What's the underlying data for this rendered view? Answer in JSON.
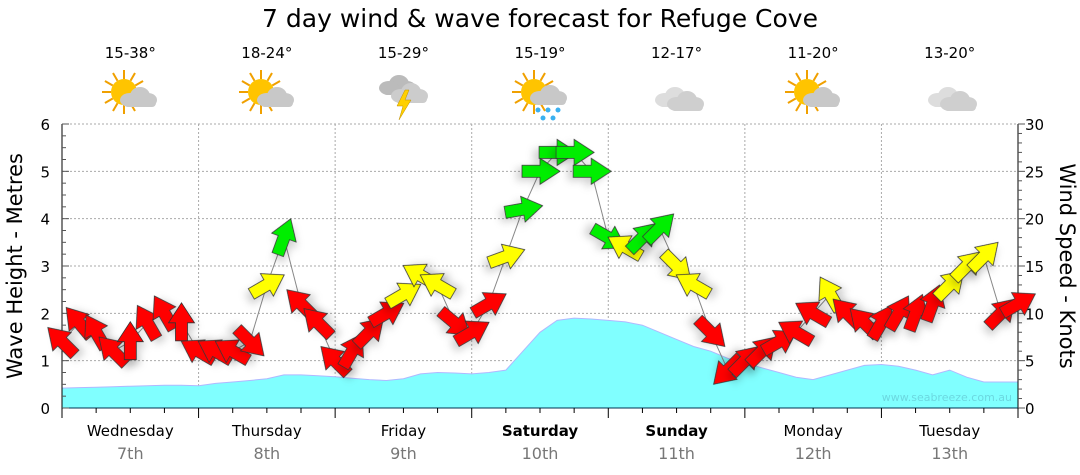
{
  "chart_data": {
    "type": "area+wind-arrows",
    "title": "7 day wind & wave forecast for Refuge Cove",
    "ylabel_left": "Wave Height - Metres",
    "ylabel_right": "Wind Speed - Knots",
    "ylim_left": [
      0,
      6
    ],
    "ylim_right": [
      0,
      30
    ],
    "yticks_left": [
      "0",
      "1",
      "2",
      "3",
      "4",
      "5",
      "6"
    ],
    "yticks_right": [
      "0",
      "5",
      "10",
      "15",
      "20",
      "25",
      "30"
    ],
    "grid": true,
    "watermark": "www.seabreeze.com.au",
    "interval_hours": 3,
    "days": [
      {
        "name": "Wednesday",
        "date": "7th",
        "bold": false,
        "temp": "15-38°",
        "icon": "sun-cloud-icon"
      },
      {
        "name": "Thursday",
        "date": "8th",
        "bold": false,
        "temp": "18-24°",
        "icon": "sun-cloud-icon"
      },
      {
        "name": "Friday",
        "date": "9th",
        "bold": false,
        "temp": "15-29°",
        "icon": "storm-cloud-icon"
      },
      {
        "name": "Saturday",
        "date": "10th",
        "bold": true,
        "temp": "15-19°",
        "icon": "sun-rain-icon"
      },
      {
        "name": "Sunday",
        "date": "11th",
        "bold": true,
        "temp": "12-17°",
        "icon": "cloud-icon"
      },
      {
        "name": "Monday",
        "date": "12th",
        "bold": false,
        "temp": "11-20°",
        "icon": "sun-cloud-icon"
      },
      {
        "name": "Tuesday",
        "date": "13th",
        "bold": false,
        "temp": "13-20°",
        "icon": "cloud-icon"
      }
    ],
    "wave_height_m": [
      0.42,
      0.43,
      0.44,
      0.45,
      0.46,
      0.47,
      0.48,
      0.48,
      0.47,
      0.52,
      0.55,
      0.58,
      0.62,
      0.7,
      0.7,
      0.68,
      0.66,
      0.63,
      0.6,
      0.58,
      0.62,
      0.72,
      0.75,
      0.74,
      0.72,
      0.75,
      0.8,
      1.2,
      1.6,
      1.85,
      1.9,
      1.88,
      1.85,
      1.82,
      1.75,
      1.6,
      1.45,
      1.3,
      1.2,
      1.05,
      0.95,
      0.85,
      0.75,
      0.65,
      0.6,
      0.7,
      0.8,
      0.9,
      0.92,
      0.88,
      0.8,
      0.7,
      0.8,
      0.65,
      0.55,
      0.55,
      0.55
    ],
    "wind_knots": [
      7,
      9,
      8,
      6,
      7,
      9,
      10,
      9,
      6,
      6,
      6,
      7,
      13,
      18,
      11,
      9,
      5,
      6,
      8,
      10,
      12,
      14,
      13,
      9,
      8,
      11,
      16,
      21,
      25,
      27,
      27,
      25,
      18,
      17,
      18,
      19,
      15,
      13,
      8,
      4,
      5,
      6,
      7,
      8,
      10,
      12,
      10,
      9,
      9,
      10,
      10,
      11,
      13,
      15,
      16,
      10,
      11
    ],
    "wind_arrow_dir_deg": [
      315,
      320,
      330,
      315,
      0,
      330,
      330,
      0,
      300,
      300,
      300,
      135,
      60,
      20,
      315,
      315,
      315,
      30,
      45,
      60,
      60,
      300,
      300,
      130,
      60,
      60,
      70,
      80,
      90,
      90,
      90,
      90,
      120,
      300,
      45,
      45,
      135,
      300,
      135,
      225,
      45,
      45,
      60,
      300,
      300,
      330,
      315,
      315,
      30,
      30,
      20,
      20,
      45,
      45,
      45,
      45,
      60
    ],
    "wind_color_thresholds_knots": {
      "yellow": 12,
      "green": 18
    },
    "colors": {
      "wave": "#80ffff",
      "wave_edge": "#b0b8ff",
      "red": "#ff0000",
      "yellow": "#ffff00",
      "green": "#00ee00"
    }
  }
}
